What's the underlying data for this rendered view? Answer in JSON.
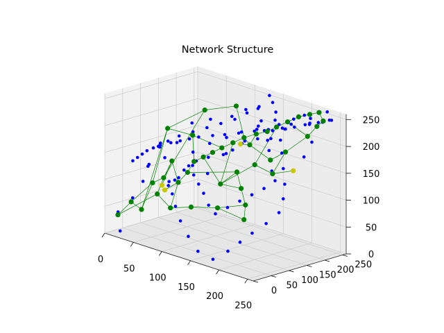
{
  "chart_data": {
    "type": "scatter-3d",
    "title": "Network Structure",
    "xlim": [
      0,
      260
    ],
    "ylim": [
      0,
      260
    ],
    "zlim": [
      0,
      260
    ],
    "x_ticks": [
      0,
      50,
      100,
      150,
      200,
      250
    ],
    "y_ticks": [
      0,
      50,
      100,
      150,
      200,
      250
    ],
    "z_ticks": [
      0,
      50,
      100,
      150,
      200,
      250
    ],
    "colors": {
      "background_points": "#0000ff",
      "network_nodes": "#008000",
      "highlight_nodes": "#c8c800",
      "edges": "#008000"
    },
    "background_points": [
      [
        12,
        18,
        40
      ],
      [
        30,
        30,
        70
      ],
      [
        22,
        8,
        10
      ],
      [
        45,
        35,
        105
      ],
      [
        60,
        25,
        140
      ],
      [
        80,
        40,
        160
      ],
      [
        95,
        55,
        125
      ],
      [
        110,
        70,
        150
      ],
      [
        50,
        70,
        165
      ],
      [
        40,
        60,
        130
      ],
      [
        70,
        90,
        175
      ],
      [
        130,
        80,
        140
      ],
      [
        150,
        100,
        180
      ],
      [
        165,
        120,
        200
      ],
      [
        180,
        140,
        210
      ],
      [
        200,
        150,
        230
      ],
      [
        220,
        170,
        245
      ],
      [
        240,
        190,
        250
      ],
      [
        250,
        210,
        255
      ],
      [
        230,
        230,
        240
      ],
      [
        210,
        225,
        230
      ],
      [
        190,
        200,
        220
      ],
      [
        175,
        185,
        200
      ],
      [
        160,
        170,
        215
      ],
      [
        145,
        160,
        190
      ],
      [
        130,
        150,
        170
      ],
      [
        120,
        140,
        160
      ],
      [
        100,
        130,
        150
      ],
      [
        85,
        120,
        140
      ],
      [
        70,
        110,
        120
      ],
      [
        60,
        100,
        100
      ],
      [
        55,
        90,
        90
      ],
      [
        75,
        60,
        110
      ],
      [
        90,
        45,
        95
      ],
      [
        105,
        30,
        80
      ],
      [
        120,
        20,
        60
      ],
      [
        140,
        10,
        40
      ],
      [
        160,
        5,
        20
      ],
      [
        180,
        15,
        10
      ],
      [
        200,
        25,
        30
      ],
      [
        215,
        35,
        50
      ],
      [
        230,
        45,
        70
      ],
      [
        245,
        60,
        90
      ],
      [
        255,
        80,
        110
      ],
      [
        250,
        100,
        130
      ],
      [
        240,
        120,
        150
      ],
      [
        225,
        140,
        170
      ],
      [
        210,
        160,
        190
      ],
      [
        195,
        180,
        205
      ],
      [
        180,
        200,
        225
      ],
      [
        165,
        215,
        240
      ],
      [
        150,
        230,
        250
      ],
      [
        135,
        245,
        255
      ],
      [
        120,
        240,
        230
      ],
      [
        105,
        230,
        215
      ],
      [
        90,
        220,
        200
      ],
      [
        75,
        205,
        190
      ],
      [
        60,
        190,
        180
      ],
      [
        45,
        175,
        170
      ],
      [
        30,
        160,
        160
      ],
      [
        20,
        145,
        150
      ],
      [
        15,
        130,
        140
      ],
      [
        25,
        115,
        150
      ],
      [
        35,
        100,
        160
      ],
      [
        65,
        140,
        200
      ],
      [
        85,
        160,
        210
      ],
      [
        110,
        180,
        220
      ],
      [
        125,
        195,
        235
      ],
      [
        140,
        205,
        240
      ],
      [
        155,
        190,
        225
      ],
      [
        170,
        175,
        215
      ],
      [
        185,
        160,
        205
      ],
      [
        200,
        140,
        195
      ],
      [
        215,
        120,
        185
      ],
      [
        230,
        100,
        175
      ],
      [
        245,
        85,
        165
      ],
      [
        235,
        70,
        150
      ],
      [
        220,
        60,
        135
      ],
      [
        205,
        50,
        120
      ],
      [
        190,
        40,
        105
      ],
      [
        175,
        30,
        90
      ],
      [
        160,
        35,
        100
      ],
      [
        145,
        45,
        115
      ],
      [
        130,
        55,
        125
      ],
      [
        115,
        65,
        135
      ],
      [
        100,
        75,
        145
      ],
      [
        95,
        95,
        165
      ],
      [
        115,
        110,
        185
      ],
      [
        135,
        125,
        200
      ],
      [
        155,
        135,
        215
      ],
      [
        175,
        150,
        230
      ],
      [
        195,
        165,
        245
      ],
      [
        215,
        185,
        250
      ],
      [
        235,
        200,
        255
      ],
      [
        250,
        235,
        250
      ],
      [
        240,
        245,
        245
      ],
      [
        225,
        250,
        235
      ],
      [
        205,
        245,
        225
      ],
      [
        185,
        235,
        215
      ],
      [
        170,
        225,
        210
      ],
      [
        155,
        210,
        205
      ],
      [
        140,
        195,
        200
      ],
      [
        125,
        175,
        195
      ],
      [
        110,
        160,
        190
      ],
      [
        95,
        150,
        185
      ],
      [
        80,
        135,
        180
      ],
      [
        70,
        125,
        175
      ],
      [
        60,
        115,
        170
      ],
      [
        50,
        105,
        165
      ],
      [
        40,
        90,
        160
      ],
      [
        35,
        80,
        155
      ],
      [
        30,
        70,
        150
      ],
      [
        28,
        60,
        145
      ],
      [
        26,
        50,
        140
      ],
      [
        24,
        40,
        135
      ],
      [
        160,
        250,
        200
      ],
      [
        190,
        255,
        235
      ],
      [
        230,
        255,
        255
      ],
      [
        250,
        180,
        220
      ],
      [
        255,
        150,
        200
      ]
    ],
    "network_nodes": [
      [
        20,
        5,
        40
      ],
      [
        40,
        10,
        70
      ],
      [
        55,
        15,
        60
      ],
      [
        65,
        30,
        110
      ],
      [
        75,
        45,
        120
      ],
      [
        80,
        60,
        150
      ],
      [
        85,
        70,
        110
      ],
      [
        95,
        80,
        130
      ],
      [
        100,
        90,
        150
      ],
      [
        110,
        100,
        160
      ],
      [
        120,
        110,
        170
      ],
      [
        130,
        120,
        180
      ],
      [
        140,
        135,
        190
      ],
      [
        150,
        150,
        200
      ],
      [
        165,
        160,
        210
      ],
      [
        175,
        175,
        215
      ],
      [
        185,
        185,
        225
      ],
      [
        195,
        200,
        235
      ],
      [
        205,
        215,
        245
      ],
      [
        215,
        230,
        250
      ],
      [
        225,
        240,
        255
      ],
      [
        60,
        80,
        200
      ],
      [
        100,
        120,
        240
      ],
      [
        130,
        160,
        250
      ],
      [
        150,
        130,
        140
      ],
      [
        170,
        110,
        120
      ],
      [
        190,
        90,
        100
      ],
      [
        200,
        70,
        80
      ],
      [
        160,
        60,
        90
      ],
      [
        120,
        50,
        80
      ],
      [
        90,
        40,
        70
      ],
      [
        70,
        35,
        90
      ],
      [
        140,
        100,
        120
      ],
      [
        175,
        140,
        160
      ],
      [
        200,
        150,
        150
      ],
      [
        210,
        170,
        190
      ],
      [
        190,
        160,
        170
      ],
      [
        160,
        150,
        190
      ],
      [
        230,
        200,
        220
      ],
      [
        240,
        210,
        240
      ],
      [
        245,
        220,
        250
      ],
      [
        85,
        110,
        190
      ]
    ],
    "highlight_nodes": [
      [
        72,
        45,
        105
      ],
      [
        80,
        40,
        100
      ],
      [
        255,
        120,
        180
      ],
      [
        150,
        140,
        190
      ]
    ],
    "edges": [
      [
        0,
        1
      ],
      [
        1,
        2
      ],
      [
        1,
        3
      ],
      [
        2,
        3
      ],
      [
        3,
        4
      ],
      [
        4,
        5
      ],
      [
        5,
        6
      ],
      [
        6,
        7
      ],
      [
        7,
        8
      ],
      [
        8,
        9
      ],
      [
        9,
        10
      ],
      [
        10,
        11
      ],
      [
        11,
        12
      ],
      [
        12,
        13
      ],
      [
        13,
        14
      ],
      [
        14,
        15
      ],
      [
        15,
        16
      ],
      [
        16,
        17
      ],
      [
        17,
        18
      ],
      [
        18,
        19
      ],
      [
        19,
        20
      ],
      [
        2,
        21
      ],
      [
        21,
        22
      ],
      [
        22,
        23
      ],
      [
        23,
        13
      ],
      [
        3,
        21
      ],
      [
        4,
        22
      ],
      [
        7,
        24
      ],
      [
        24,
        25
      ],
      [
        25,
        26
      ],
      [
        26,
        27
      ],
      [
        27,
        28
      ],
      [
        28,
        29
      ],
      [
        29,
        30
      ],
      [
        30,
        31
      ],
      [
        31,
        4
      ],
      [
        24,
        32
      ],
      [
        32,
        33
      ],
      [
        33,
        34
      ],
      [
        34,
        35
      ],
      [
        35,
        36
      ],
      [
        36,
        37
      ],
      [
        37,
        13
      ],
      [
        35,
        38
      ],
      [
        38,
        39
      ],
      [
        39,
        40
      ],
      [
        40,
        20
      ],
      [
        26,
        28
      ],
      [
        12,
        32
      ],
      [
        41,
        21
      ],
      [
        41,
        8
      ],
      [
        41,
        11
      ],
      [
        0,
        31
      ],
      [
        9,
        32
      ],
      [
        33,
        16
      ],
      [
        25,
        32
      ],
      [
        30,
        6
      ],
      [
        14,
        37
      ],
      [
        17,
        38
      ]
    ],
    "highlight_edges": [
      [
        0,
        5
      ],
      [
        1,
        6
      ],
      [
        2,
        34
      ],
      [
        3,
        37
      ]
    ],
    "legend": "",
    "grid": true
  }
}
